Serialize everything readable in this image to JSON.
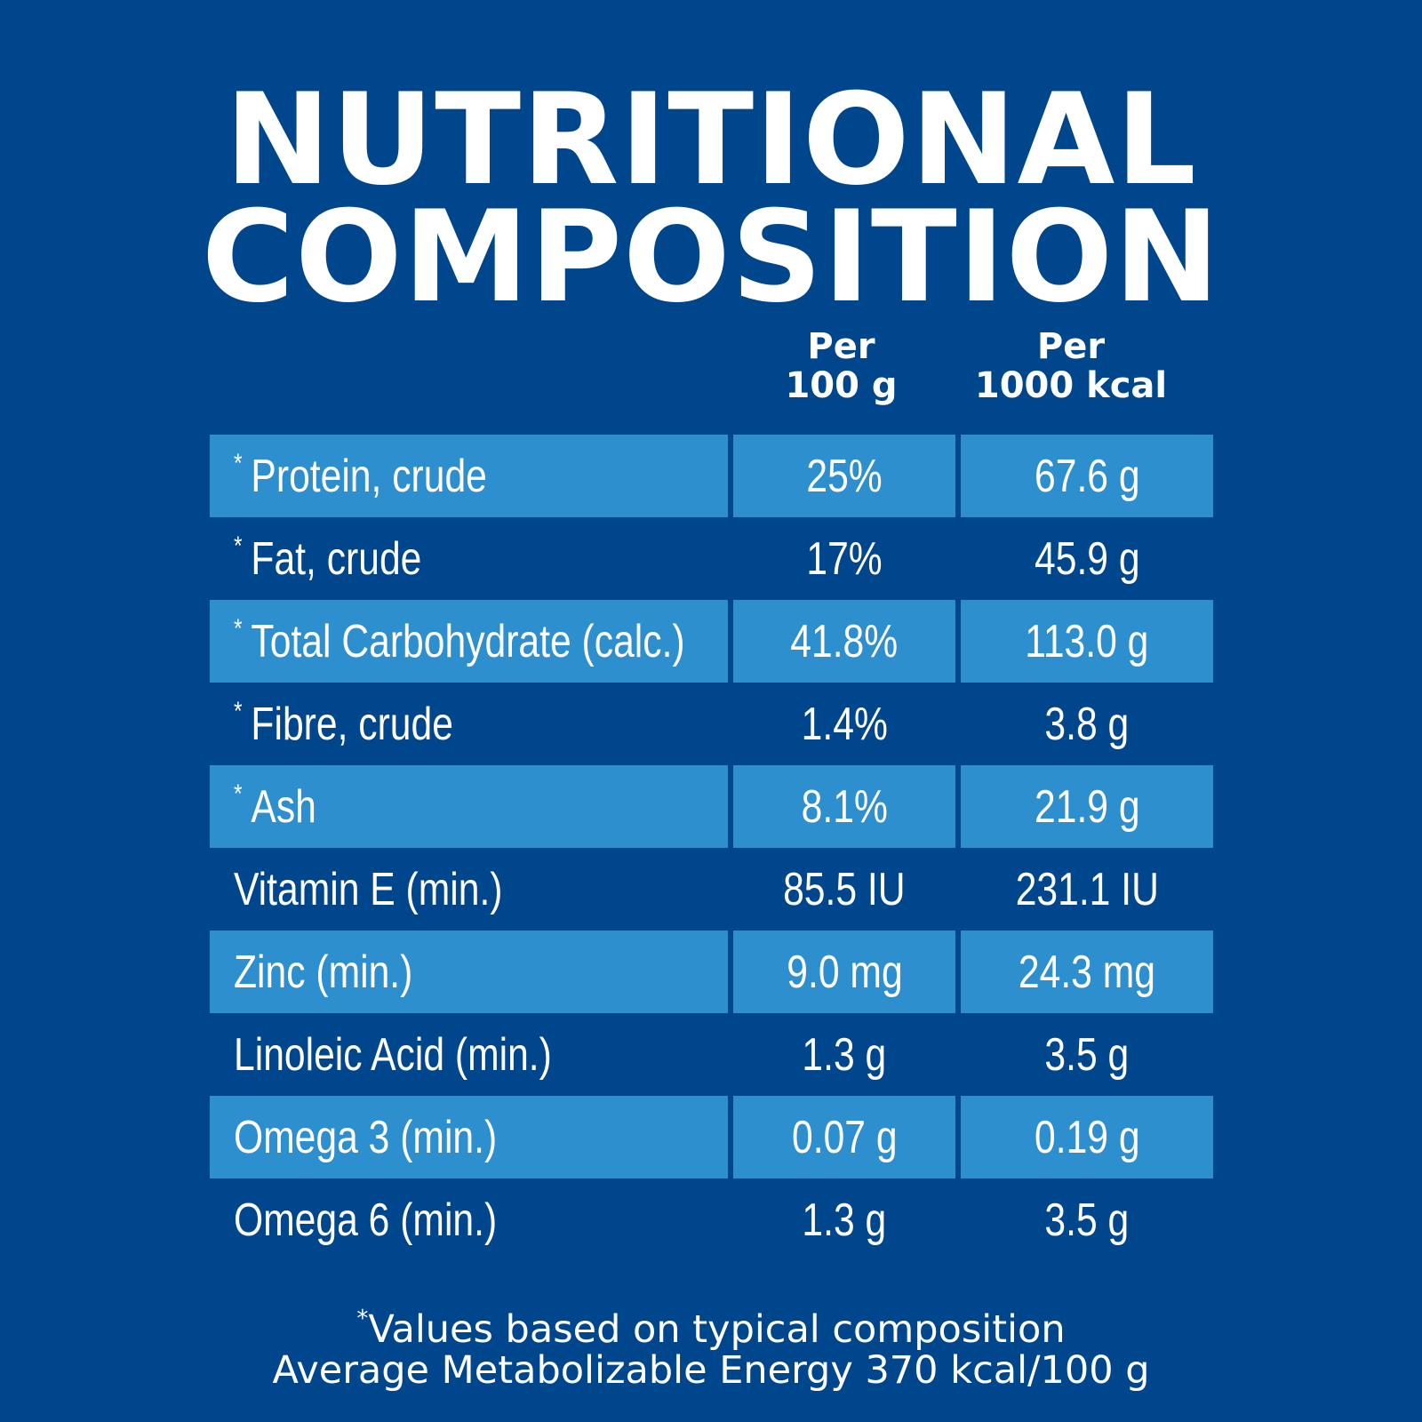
{
  "title": {
    "line1": "NUTRITIONAL",
    "line2": "COMPOSITION"
  },
  "columns": {
    "col1": {
      "line1": "Per",
      "line2": "100 g"
    },
    "col2": {
      "line1": "Per",
      "line2": "1000 kcal"
    }
  },
  "rows": [
    {
      "asterisk": "*",
      "label": "Protein, crude",
      "per_100g": "25%",
      "per_1000kcal": "67.6 g"
    },
    {
      "asterisk": "*",
      "label": "Fat, crude",
      "per_100g": "17%",
      "per_1000kcal": "45.9 g"
    },
    {
      "asterisk": "*",
      "label": "Total Carbohydrate (calc.)",
      "per_100g": "41.8%",
      "per_1000kcal": "113.0 g"
    },
    {
      "asterisk": "*",
      "label": "Fibre, crude",
      "per_100g": "1.4%",
      "per_1000kcal": "3.8 g"
    },
    {
      "asterisk": "*",
      "label": "Ash",
      "per_100g": "8.1%",
      "per_1000kcal": "21.9 g"
    },
    {
      "asterisk": "",
      "label": "Vitamin E (min.)",
      "per_100g": "85.5 IU",
      "per_1000kcal": "231.1 IU"
    },
    {
      "asterisk": "",
      "label": "Zinc (min.)",
      "per_100g": "9.0 mg",
      "per_1000kcal": "24.3 mg"
    },
    {
      "asterisk": "",
      "label": "Linoleic Acid (min.)",
      "per_100g": "1.3 g",
      "per_1000kcal": "3.5 g"
    },
    {
      "asterisk": "",
      "label": "Omega 3 (min.)",
      "per_100g": "0.07 g",
      "per_1000kcal": "0.19 g"
    },
    {
      "asterisk": "",
      "label": "Omega 6 (min.)",
      "per_100g": "1.3 g",
      "per_1000kcal": "3.5 g"
    }
  ],
  "footnote": {
    "asterisk": "*",
    "line1": "Values based on typical composition",
    "line2": "Average Metabolizable Energy 370 kcal/100 g"
  },
  "colors": {
    "background": "#00468c",
    "row_shade": "#2e8fce",
    "text": "#ffffff"
  }
}
